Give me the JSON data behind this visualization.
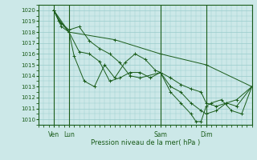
{
  "xlabel": "Pression niveau de la mer( hPa )",
  "ylim": [
    1009.5,
    1020.5
  ],
  "xlim": [
    0,
    84
  ],
  "yticks": [
    1010,
    1011,
    1012,
    1013,
    1014,
    1015,
    1016,
    1017,
    1018,
    1019,
    1020
  ],
  "background_color": "#cce8e8",
  "grid_color": "#99cccc",
  "line_color": "#1a5c1a",
  "day_lines": [
    {
      "x": 6,
      "label": "Ven"
    },
    {
      "x": 12,
      "label": "Lun"
    },
    {
      "x": 48,
      "label": "Sam"
    },
    {
      "x": 66,
      "label": "Dim"
    }
  ],
  "series": [
    {
      "x": [
        6,
        12,
        30,
        48,
        66,
        84
      ],
      "y": [
        1020.0,
        1018.0,
        1017.3,
        1016.0,
        1015.0,
        1013.0
      ]
    },
    {
      "x": [
        6,
        8,
        12,
        16,
        20,
        24,
        28,
        32,
        36,
        40,
        48,
        52,
        56,
        60,
        64,
        66,
        70,
        74,
        78,
        84
      ],
      "y": [
        1020.0,
        1019.0,
        1018.2,
        1018.5,
        1017.2,
        1016.5,
        1016.0,
        1015.2,
        1014.0,
        1013.8,
        1014.3,
        1013.8,
        1013.2,
        1012.8,
        1012.5,
        1011.5,
        1011.2,
        1011.5,
        1011.8,
        1013.0
      ]
    },
    {
      "x": [
        6,
        9,
        12,
        16,
        20,
        24,
        28,
        32,
        36,
        40,
        44,
        48,
        52,
        56,
        60,
        64,
        66,
        70,
        74,
        78,
        84
      ],
      "y": [
        1020.0,
        1018.8,
        1018.0,
        1016.2,
        1016.0,
        1015.3,
        1013.5,
        1013.8,
        1014.3,
        1014.3,
        1013.8,
        1014.3,
        1013.0,
        1012.5,
        1011.5,
        1010.8,
        1010.5,
        1010.8,
        1011.5,
        1011.2,
        1013.0
      ]
    },
    {
      "x": [
        6,
        9,
        12,
        14,
        18,
        22,
        26,
        30,
        34,
        38,
        42,
        46,
        48,
        52,
        56,
        60,
        62,
        64,
        66,
        68,
        72,
        76,
        80,
        84
      ],
      "y": [
        1020.0,
        1018.5,
        1018.0,
        1015.8,
        1013.5,
        1013.0,
        1015.0,
        1013.8,
        1015.2,
        1016.0,
        1015.5,
        1014.5,
        1014.3,
        1012.5,
        1011.5,
        1010.5,
        1009.8,
        1009.8,
        1011.2,
        1011.5,
        1011.8,
        1010.8,
        1010.5,
        1013.0
      ]
    }
  ]
}
